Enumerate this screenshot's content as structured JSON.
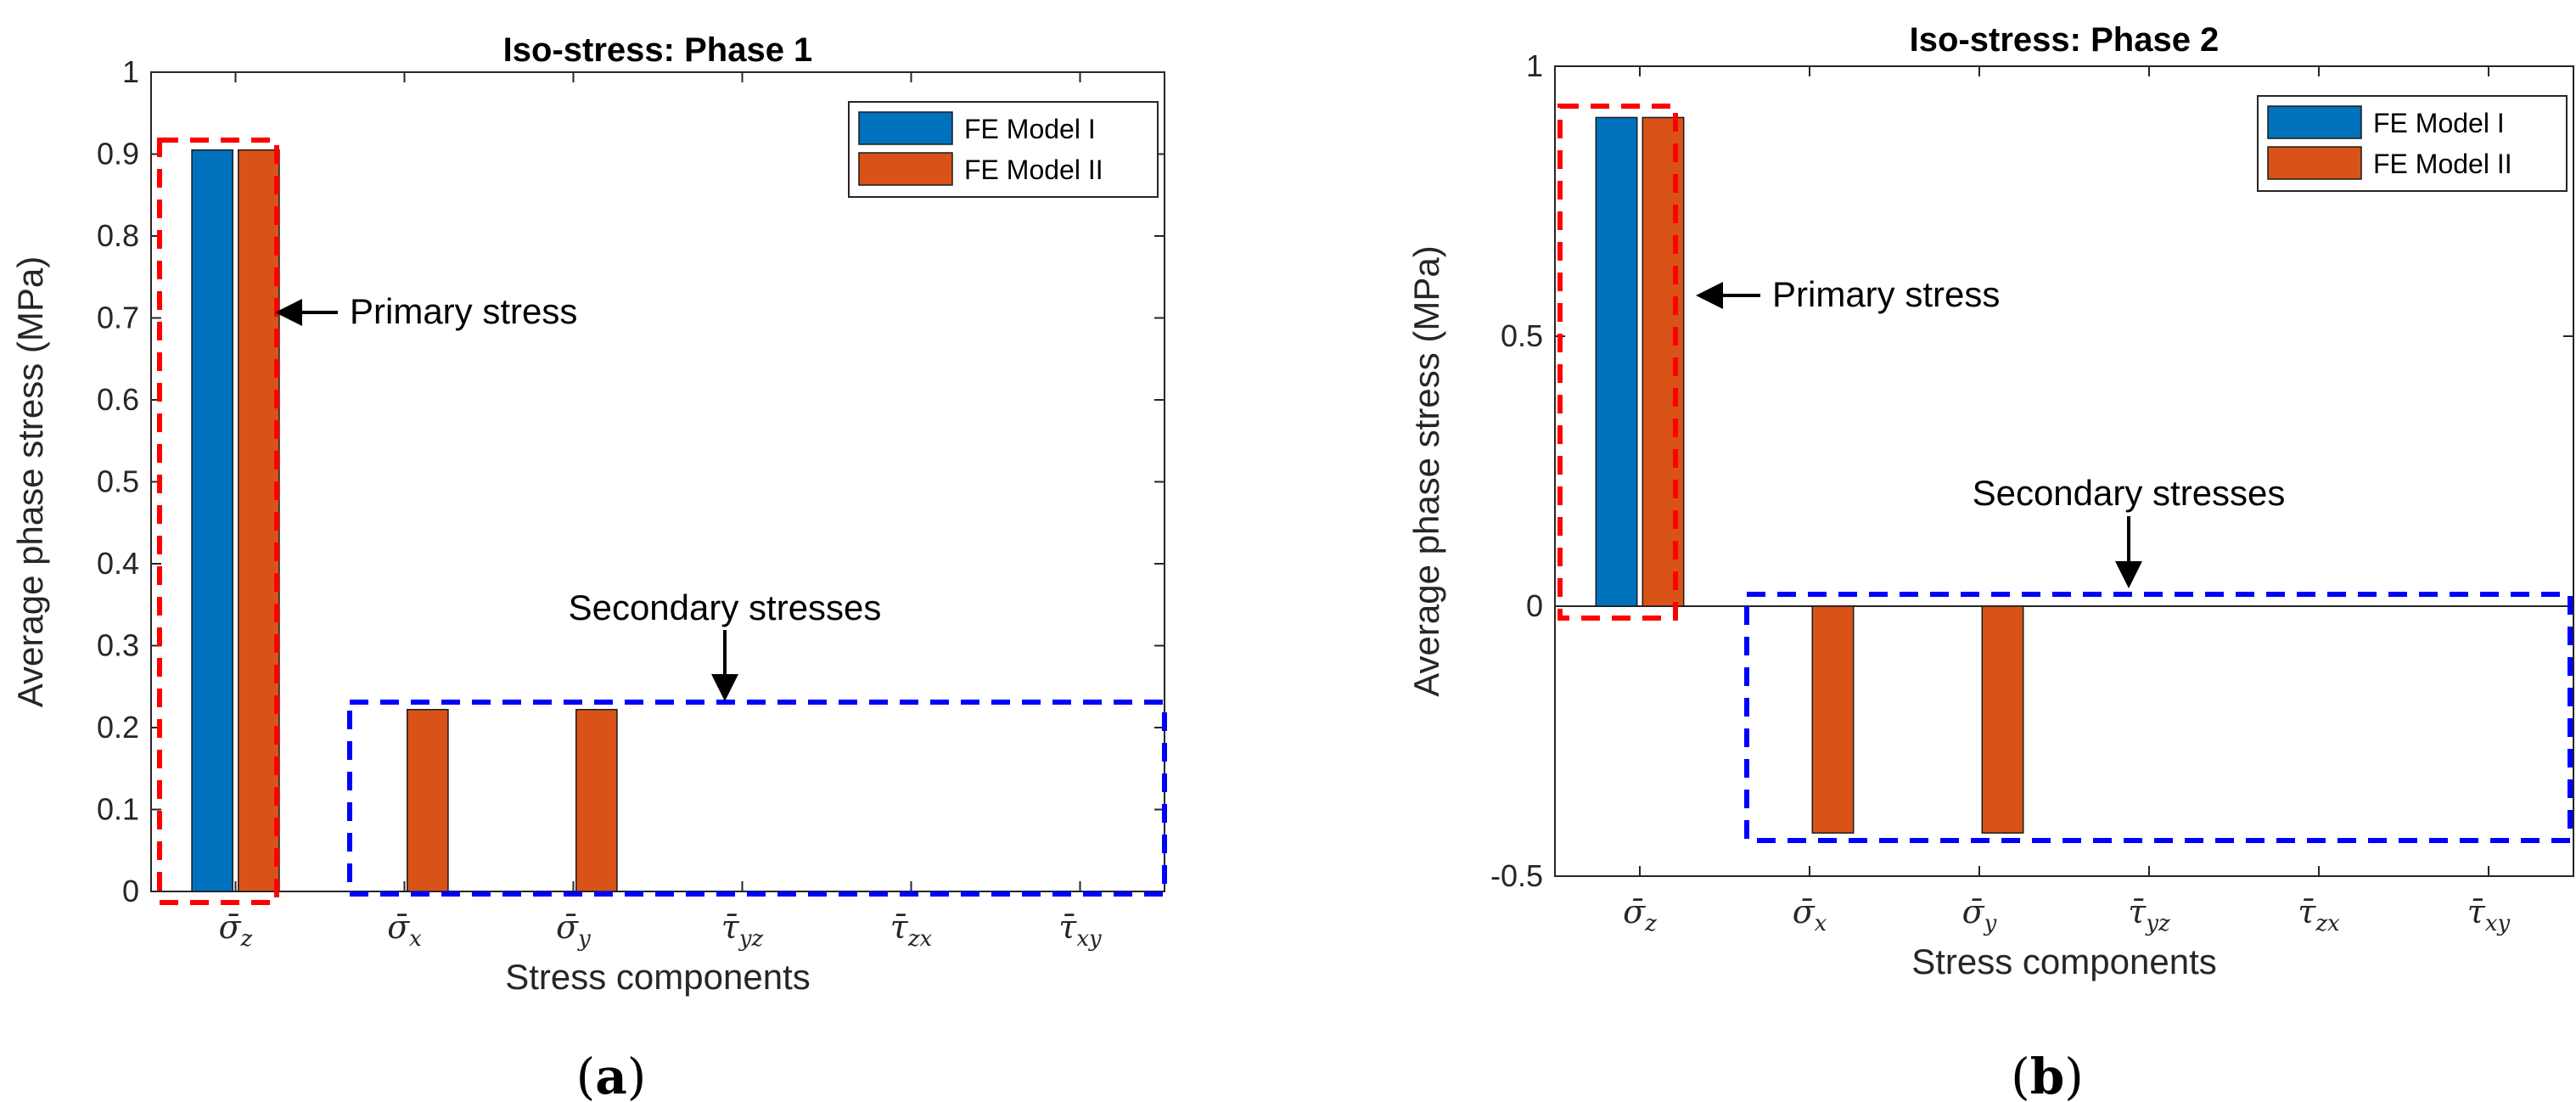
{
  "chart_data": [
    {
      "type": "bar",
      "panel_label": "(a)",
      "panel_letter": "a",
      "title": "Iso-stress: Phase 1",
      "xlabel": "Stress components",
      "ylabel": "Average phase stress (MPa)",
      "ylim": [
        0,
        1
      ],
      "yticks": [
        0,
        0.1,
        0.2,
        0.3,
        0.4,
        0.5,
        0.6,
        0.7,
        0.8,
        0.9,
        1
      ],
      "ytick_labels": [
        "0",
        "0.1",
        "0.2",
        "0.3",
        "0.4",
        "0.5",
        "0.6",
        "0.7",
        "0.8",
        "0.9",
        "1"
      ],
      "categories": [
        "σ̄z",
        "σ̄x",
        "σ̄y",
        "τ̄yz",
        "τ̄zx",
        "τ̄xy"
      ],
      "category_labels": [
        {
          "base": "σ̄",
          "sub": "z"
        },
        {
          "base": "σ̄",
          "sub": "x"
        },
        {
          "base": "σ̄",
          "sub": "y"
        },
        {
          "base": "τ̄",
          "sub": "yz"
        },
        {
          "base": "τ̄",
          "sub": "zx"
        },
        {
          "base": "τ̄",
          "sub": "xy"
        }
      ],
      "series": [
        {
          "name": "FE Model I",
          "color": "#0072BD",
          "values": [
            0.905,
            0,
            0,
            0,
            0,
            0
          ]
        },
        {
          "name": "FE Model II",
          "color": "#D95319",
          "values": [
            0.905,
            0.222,
            0.222,
            0,
            0,
            0
          ]
        }
      ],
      "legend_position": "top-right",
      "grid": false,
      "annotations": {
        "primary": "Primary stress",
        "secondary": "Secondary stresses"
      }
    },
    {
      "type": "bar",
      "panel_label": "(b)",
      "panel_letter": "b",
      "title": "Iso-stress: Phase 2",
      "xlabel": "Stress components",
      "ylabel": "Average phase stress (MPa)",
      "ylim": [
        -0.5,
        1
      ],
      "yticks": [
        -0.5,
        0,
        0.5,
        1
      ],
      "ytick_labels": [
        "-0.5",
        "0",
        "0.5",
        "1"
      ],
      "categories": [
        "σ̄z",
        "σ̄x",
        "σ̄y",
        "τ̄yz",
        "τ̄zx",
        "τ̄xy"
      ],
      "category_labels": [
        {
          "base": "σ̄",
          "sub": "z"
        },
        {
          "base": "σ̄",
          "sub": "x"
        },
        {
          "base": "σ̄",
          "sub": "y"
        },
        {
          "base": "τ̄",
          "sub": "yz"
        },
        {
          "base": "τ̄",
          "sub": "zx"
        },
        {
          "base": "τ̄",
          "sub": "xy"
        }
      ],
      "series": [
        {
          "name": "FE Model I",
          "color": "#0072BD",
          "values": [
            0.905,
            0,
            0,
            0,
            0,
            0
          ]
        },
        {
          "name": "FE Model II",
          "color": "#D95319",
          "values": [
            0.905,
            -0.42,
            -0.42,
            0,
            0,
            0
          ]
        }
      ],
      "legend_position": "top-right",
      "grid": false,
      "annotations": {
        "primary": "Primary stress",
        "secondary": "Secondary stresses"
      }
    }
  ]
}
